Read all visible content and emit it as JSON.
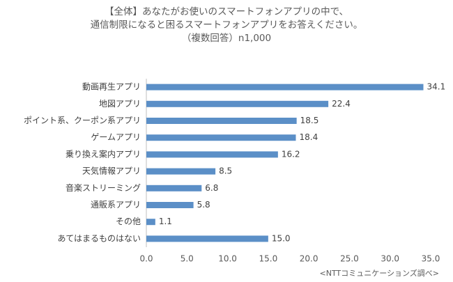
{
  "chart_data": {
    "type": "bar",
    "orientation": "horizontal",
    "title_lines": [
      "【全体】あなたがお使いのスマートフォンアプリの中で、",
      "通信制限になると困るスマートフォンアプリをお答えください。",
      "（複数回答）n1,000"
    ],
    "categories": [
      "動画再生アプリ",
      "地図アプリ",
      "ポイント系、クーポン系アプリ",
      "ゲームアプリ",
      "乗り換え案内アプリ",
      "天気情報アプリ",
      "音楽ストリーミング",
      "通販系アプリ",
      "その他",
      "あてはまるものはない"
    ],
    "values": [
      34.1,
      22.4,
      18.5,
      18.4,
      16.2,
      8.5,
      6.8,
      5.8,
      1.1,
      15.0
    ],
    "value_labels": [
      "34.1",
      "22.4",
      "18.5",
      "18.4",
      "16.2",
      "8.5",
      "6.8",
      "5.8",
      "1.1",
      "15.0"
    ],
    "x_ticks": [
      "0.0",
      "5.0",
      "10.0",
      "15.0",
      "20.0",
      "25.0",
      "30.0",
      "35.0"
    ],
    "xlim": [
      0,
      35
    ],
    "xlabel": "",
    "ylabel": "",
    "grid": false,
    "legend": "none",
    "bar_color": "#5b8fc7",
    "source_note": "<NTTコミュニケーションズ調べ>"
  }
}
